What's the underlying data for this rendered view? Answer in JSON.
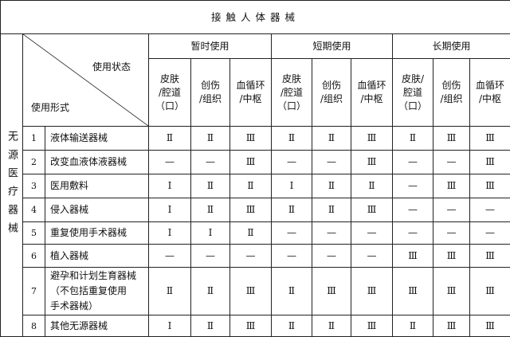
{
  "title": "接触人体器械",
  "side_label": "无源医疗器械",
  "corner": {
    "state_label": "使用状态",
    "form_label": "使用形式"
  },
  "groups": [
    "暂时使用",
    "短期使用",
    "长期使用"
  ],
  "subcolumns": [
    [
      "皮肤",
      "/腔道",
      "（口）"
    ],
    [
      "创伤",
      "/组织"
    ],
    [
      "血循环",
      "/中枢"
    ],
    [
      "皮肤",
      "/腔道",
      "（口）"
    ],
    [
      "创伤",
      "/组织"
    ],
    [
      "血循环",
      "/中枢"
    ],
    [
      "皮肤/",
      "腔道",
      "（口）"
    ],
    [
      "创伤",
      "/组织"
    ],
    [
      "血循环",
      "/中枢"
    ]
  ],
  "rows": [
    {
      "num": "1",
      "name": [
        "液体输送器械"
      ],
      "values": [
        "Ⅱ",
        "Ⅱ",
        "Ⅲ",
        "Ⅱ",
        "Ⅱ",
        "Ⅲ",
        "Ⅱ",
        "Ⅲ",
        "Ⅲ"
      ]
    },
    {
      "num": "2",
      "name": [
        "改变血液体液器械"
      ],
      "values": [
        "—",
        "—",
        "Ⅲ",
        "—",
        "—",
        "Ⅲ",
        "—",
        "—",
        "Ⅲ"
      ]
    },
    {
      "num": "3",
      "name": [
        "医用敷料"
      ],
      "values": [
        "Ⅰ",
        "Ⅱ",
        "Ⅱ",
        "Ⅰ",
        "Ⅱ",
        "Ⅱ",
        "—",
        "Ⅲ",
        "Ⅲ"
      ]
    },
    {
      "num": "4",
      "name": [
        "侵入器械"
      ],
      "values": [
        "Ⅰ",
        "Ⅱ",
        "Ⅲ",
        "Ⅱ",
        "Ⅱ",
        "Ⅲ",
        "—",
        "—",
        "—"
      ]
    },
    {
      "num": "5",
      "name": [
        "重复使用手术器械"
      ],
      "values": [
        "Ⅰ",
        "Ⅰ",
        "Ⅱ",
        "—",
        "—",
        "—",
        "—",
        "—",
        "—"
      ]
    },
    {
      "num": "6",
      "name": [
        "植入器械"
      ],
      "values": [
        "—",
        "—",
        "—",
        "—",
        "—",
        "—",
        "Ⅲ",
        "Ⅲ",
        "Ⅲ"
      ]
    },
    {
      "num": "7",
      "name": [
        "避孕和计划生育器械",
        "（不包括重复使用",
        "手术器械）"
      ],
      "values": [
        "Ⅱ",
        "Ⅱ",
        "Ⅲ",
        "Ⅱ",
        "Ⅲ",
        "Ⅲ",
        "Ⅲ",
        "Ⅲ",
        "Ⅲ"
      ]
    },
    {
      "num": "8",
      "name": [
        "其他无源器械"
      ],
      "values": [
        "Ⅰ",
        "Ⅱ",
        "Ⅲ",
        "Ⅱ",
        "Ⅱ",
        "Ⅲ",
        "Ⅱ",
        "Ⅲ",
        "Ⅲ"
      ]
    }
  ]
}
